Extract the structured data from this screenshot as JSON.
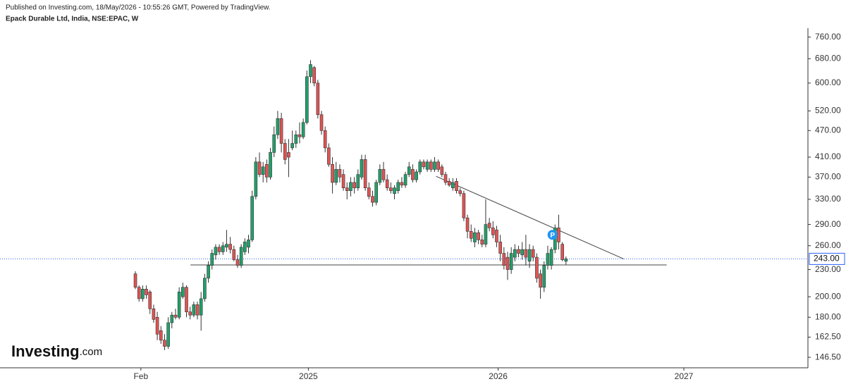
{
  "chart_data": {
    "type": "candlestick",
    "source": "Published on Investing.com, 18/May/2026 - 10:55:26 GMT, Powered by TradingView.",
    "title": "Epack Durable Ltd, India, NSE:EPAC, W",
    "logo": {
      "name": "Investing",
      "suffix": ".com"
    },
    "log_scale": true,
    "up_color": "#22a06b",
    "down_color": "#e05454",
    "ylim": [
      138.8,
      795.6
    ],
    "yticks": [
      {
        "value": 760,
        "label": "760.00"
      },
      {
        "value": 680,
        "label": "680.00"
      },
      {
        "value": 600,
        "label": "600.00"
      },
      {
        "value": 520,
        "label": "520.00"
      },
      {
        "value": 470,
        "label": "470.00"
      },
      {
        "value": 410,
        "label": "410.00"
      },
      {
        "value": 370,
        "label": "370.00"
      },
      {
        "value": 330,
        "label": "330.00"
      },
      {
        "value": 290,
        "label": "290.00"
      },
      {
        "value": 260,
        "label": "260.00"
      },
      {
        "value": 230,
        "label": "230.00"
      },
      {
        "value": 200,
        "label": "200.00"
      },
      {
        "value": 180,
        "label": "180.00"
      },
      {
        "value": 162.5,
        "label": "162.50"
      },
      {
        "value": 146.5,
        "label": "146.50"
      }
    ],
    "xlim": [
      -37.1,
      184.3
    ],
    "xticks": [
      {
        "value": 1.5,
        "label": "Feb"
      },
      {
        "value": 47.4,
        "label": "2025"
      },
      {
        "value": 99.4,
        "label": "2026"
      },
      {
        "value": 150.3,
        "label": "2027"
      }
    ],
    "last_price": {
      "value": 243,
      "label": "243.00",
      "color": "#2962ff"
    },
    "trendlines": [
      {
        "x": [
          15.1,
          145.6
        ],
        "y": [
          235.5,
          235.5
        ]
      },
      {
        "x": [
          82.4,
          133.8
        ],
        "y": [
          371.5,
          243
        ]
      }
    ],
    "event_marker": {
      "label": "P",
      "x": 114.3,
      "y": 275
    },
    "open": [
      225,
      210,
      198,
      208,
      205,
      188,
      180,
      168,
      160,
      155,
      175,
      182,
      180,
      200,
      210,
      185,
      182,
      192,
      182,
      198,
      220,
      235,
      248,
      258,
      252,
      258,
      262,
      255,
      242,
      235,
      252,
      258,
      268,
      335,
      400,
      375,
      395,
      370,
      420,
      460,
      500,
      440,
      420,
      430,
      440,
      460,
      455,
      490,
      620,
      650,
      600,
      510,
      470,
      430,
      395,
      360,
      385,
      375,
      350,
      345,
      360,
      350,
      370,
      405,
      350,
      335,
      325,
      360,
      385,
      365,
      350,
      340,
      345,
      360,
      355,
      375,
      385,
      365,
      380,
      400,
      385,
      400,
      385,
      400,
      390,
      375,
      362,
      350,
      362,
      345,
      340,
      300,
      280,
      265,
      278,
      268,
      262,
      292,
      285,
      282,
      265,
      250,
      245,
      230,
      245,
      255,
      248,
      255,
      240,
      255,
      245,
      225,
      210,
      235,
      235,
      255,
      285,
      262,
      240
    ],
    "high": [
      228,
      212,
      212,
      212,
      207,
      192,
      185,
      172,
      165,
      180,
      185,
      188,
      210,
      215,
      212,
      190,
      195,
      195,
      205,
      225,
      240,
      255,
      262,
      262,
      265,
      282,
      272,
      260,
      248,
      262,
      270,
      275,
      345,
      410,
      420,
      400,
      405,
      430,
      480,
      520,
      515,
      450,
      450,
      470,
      470,
      490,
      500,
      640,
      675,
      655,
      610,
      520,
      480,
      440,
      410,
      400,
      395,
      385,
      360,
      370,
      370,
      385,
      415,
      415,
      360,
      345,
      365,
      395,
      400,
      375,
      360,
      355,
      365,
      370,
      380,
      400,
      395,
      385,
      405,
      405,
      405,
      405,
      410,
      405,
      395,
      380,
      368,
      368,
      368,
      350,
      345,
      305,
      290,
      285,
      282,
      275,
      330,
      300,
      295,
      288,
      275,
      258,
      252,
      258,
      262,
      260,
      265,
      275,
      262,
      260,
      250,
      230,
      240,
      260,
      258,
      290,
      305,
      265,
      246
    ],
    "low": [
      208,
      195,
      195,
      198,
      183,
      175,
      160,
      157,
      152,
      153,
      170,
      178,
      178,
      198,
      180,
      178,
      180,
      178,
      168,
      195,
      215,
      230,
      242,
      248,
      248,
      252,
      250,
      240,
      232,
      232,
      248,
      250,
      265,
      330,
      370,
      360,
      360,
      365,
      410,
      450,
      420,
      395,
      370,
      425,
      430,
      440,
      450,
      485,
      600,
      590,
      500,
      460,
      420,
      390,
      340,
      355,
      360,
      345,
      330,
      335,
      340,
      345,
      365,
      345,
      330,
      318,
      320,
      355,
      360,
      345,
      340,
      330,
      340,
      350,
      350,
      370,
      360,
      360,
      375,
      385,
      380,
      380,
      380,
      380,
      370,
      355,
      352,
      345,
      340,
      335,
      295,
      270,
      265,
      258,
      262,
      258,
      258,
      280,
      270,
      258,
      240,
      230,
      218,
      225,
      240,
      245,
      242,
      235,
      232,
      240,
      215,
      198,
      205,
      230,
      230,
      250,
      255,
      240,
      236
    ],
    "close": [
      210,
      198,
      208,
      202,
      188,
      178,
      165,
      160,
      155,
      175,
      182,
      180,
      205,
      210,
      185,
      182,
      192,
      182,
      198,
      220,
      235,
      250,
      258,
      252,
      260,
      262,
      255,
      242,
      235,
      258,
      265,
      268,
      335,
      400,
      375,
      390,
      370,
      420,
      460,
      500,
      440,
      405,
      410,
      440,
      460,
      455,
      490,
      620,
      660,
      600,
      510,
      470,
      430,
      395,
      360,
      385,
      370,
      350,
      345,
      360,
      350,
      375,
      405,
      350,
      335,
      325,
      360,
      385,
      365,
      350,
      345,
      350,
      360,
      355,
      375,
      390,
      365,
      380,
      400,
      390,
      400,
      385,
      400,
      385,
      375,
      360,
      355,
      360,
      345,
      340,
      300,
      280,
      270,
      278,
      268,
      262,
      290,
      285,
      275,
      265,
      250,
      235,
      230,
      250,
      255,
      250,
      255,
      245,
      255,
      245,
      220,
      210,
      235,
      250,
      255,
      285,
      265,
      242,
      243
    ]
  }
}
